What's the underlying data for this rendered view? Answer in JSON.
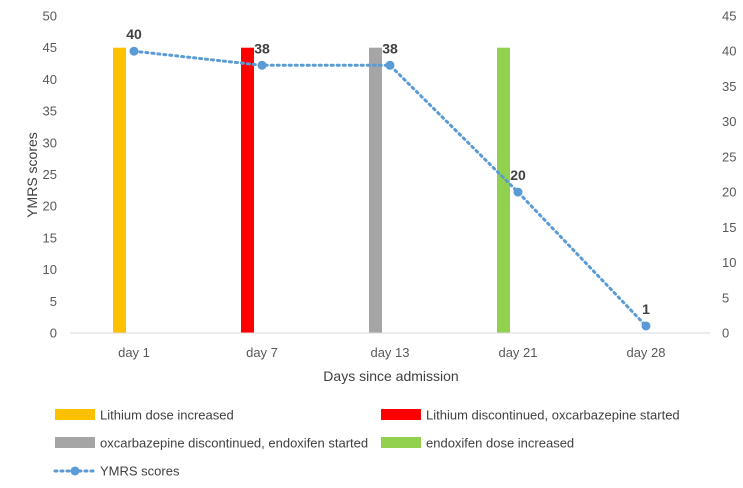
{
  "chart_data": {
    "type": "bar",
    "x_categories": [
      "day 1",
      "day 7",
      "day 13",
      "day 21",
      "day 28"
    ],
    "xlabel": "Days since admission",
    "ylabel": "YMRS scores",
    "primary_axis": {
      "ylim": [
        0,
        50
      ],
      "ticks": [
        0,
        5,
        10,
        15,
        20,
        25,
        30,
        35,
        40,
        45,
        50
      ]
    },
    "secondary_axis": {
      "ylim": [
        0,
        45
      ],
      "ticks": [
        0,
        5,
        10,
        15,
        20,
        25,
        30,
        35,
        40,
        45
      ]
    },
    "grid": false,
    "bar_series": [
      {
        "name": "Lithium dose increased",
        "category": "day 1",
        "value": 45,
        "color": "#FFC000"
      },
      {
        "name": "Lithium discontinued, oxcarbazepine started",
        "category": "day 7",
        "value": 45,
        "color": "#FF0000"
      },
      {
        "name": "oxcarbazepine discontinued, endoxifen started",
        "category": "day 13",
        "value": 45,
        "color": "#A5A5A5"
      },
      {
        "name": "endoxifen dose increased",
        "category": "day 21",
        "value": 45,
        "color": "#92D050"
      }
    ],
    "line_series": {
      "name": "YMRS scores",
      "axis": "secondary",
      "color": "#5B9BD5",
      "style": "dotted-with-markers",
      "categories": [
        "day 1",
        "day 7",
        "day 13",
        "day 21",
        "day 28"
      ],
      "values": [
        40,
        38,
        38,
        20,
        1
      ],
      "data_labels": [
        "40",
        "38",
        "38",
        "20",
        "1"
      ]
    },
    "legend": {
      "placement": "bottom",
      "items": [
        "Lithium dose increased",
        "Lithium discontinued, oxcarbazepine started",
        "oxcarbazepine discontinued, endoxifen started",
        "endoxifen dose increased",
        "YMRS scores"
      ]
    }
  }
}
